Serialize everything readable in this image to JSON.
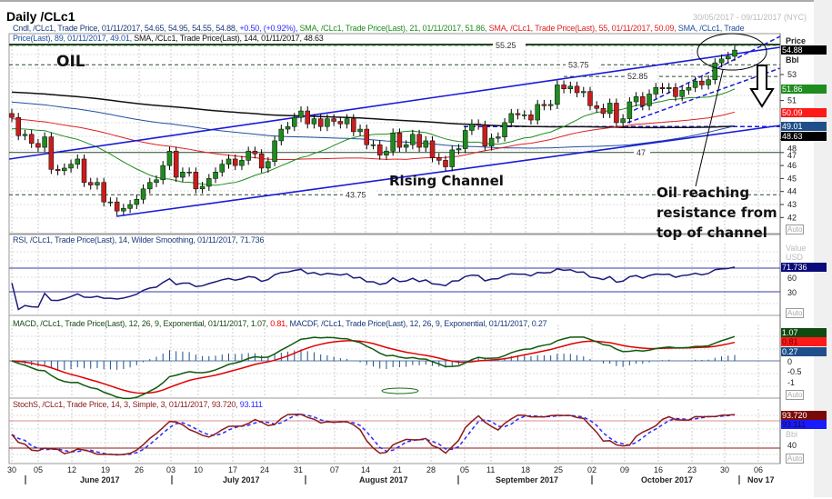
{
  "window": {
    "title": "Daily /CLc1",
    "date_range": "30/05/2017 - 09/11/2017 (NYC)"
  },
  "legends": {
    "main_line1": [
      {
        "text": "Cndl, /CLc1, Trade Price, 01/11/2017, 54.65, 54.95, 54.55, 54.88,",
        "color": "#1a3a7a"
      },
      {
        "text": " +0.50, (+0.92%),",
        "color": "#2a2aff"
      },
      {
        "text": " SMA, /CLc1, Trade Price(Last),  21, 01/11/2017, 51.86,",
        "color": "#1e8c1e"
      },
      {
        "text": " SMA, /CLc1, Trade Price(Last),  55, 01/11/2017, 50.09,",
        "color": "#e02020"
      },
      {
        "text": " SMA, /CLc1, Trade Price(Last),  89,",
        "color": "#1f4fa0"
      }
    ],
    "main_line2": [
      {
        "text": "01/11/2017, 49.01,",
        "color": "#1f4fa0"
      },
      {
        "text": " SMA, /CLc1, Trade Price(Last),  144, 01/11/2017, 48.63",
        "color": "#111"
      }
    ],
    "rsi": "RSI, /CLc1, Trade Price(Last),  14, Wilder Smoothing, 01/11/2017, 71.736",
    "macd": [
      {
        "text": "MACD, /CLc1, Trade Price(Last),  12, 26, 9, Exponential, 01/11/2017, 1.07,",
        "color": "#1a4a1a"
      },
      {
        "text": " 0.81,",
        "color": "#e00"
      },
      {
        "text": " MACDF, /CLc1, Trade Price(Last),  12, 26, 9, Exponential, 01/11/2017, 0.27",
        "color": "#1a3a7a"
      }
    ],
    "stoch": [
      {
        "text": "StochS, /CLc1, Trade Price,  14, 3, Simple, 3, 01/11/2017, 93.720,",
        "color": "#8b1a1a"
      },
      {
        "text": " 93.111",
        "color": "#2a2aff"
      }
    ]
  },
  "annotations": {
    "oil": "OIL",
    "channel": "Rising Channel",
    "note": [
      "Oil reaching",
      "resistance from",
      "top of channel"
    ]
  },
  "levels": [
    {
      "label": "55.25",
      "value": 55.25
    },
    {
      "label": "53.75",
      "value": 53.75
    },
    {
      "label": "52.85",
      "value": 52.85
    },
    {
      "label": "47",
      "value": 47
    },
    {
      "label": "43.75",
      "value": 43.75
    }
  ],
  "axis": {
    "price_header": "Price",
    "price_unit": "Bbl",
    "price_ticks": [
      "53",
      "51",
      "48",
      "47",
      "46",
      "45",
      "44",
      "43",
      "42"
    ],
    "tags": [
      {
        "text": "54.88",
        "bg": "#000",
        "value": 54.88
      },
      {
        "text": "51.86",
        "bg": "#1e8c1e",
        "value": 51.86
      },
      {
        "text": "50.09",
        "bg": "#ff1a1a",
        "value": 50.09
      },
      {
        "text": "49.01",
        "bg": "#1f4f8a",
        "value": 49.01
      },
      {
        "text": "48.63",
        "bg": "#000",
        "value": 48.63
      }
    ],
    "rsi_header": "Value",
    "rsi_unit": "USD",
    "rsi_ticks": [
      "60",
      "30"
    ],
    "rsi_tag": "71.736",
    "macd_ticks": [
      "0",
      "-0.5",
      "-1"
    ],
    "macd_tags": [
      "1.07",
      "0.81",
      "0.27"
    ],
    "stoch_tags": [
      "93.720",
      "93.111"
    ],
    "stoch_unit": "Bbl",
    "stoch_ticks": [
      "40"
    ],
    "auto": "Auto",
    "days": [
      "30",
      "05",
      "12",
      "19",
      "26",
      "03",
      "10",
      "17",
      "24",
      "31",
      "07",
      "14",
      "21",
      "28",
      "05",
      "11",
      "18",
      "25",
      "02",
      "09",
      "16",
      "23",
      "30",
      "06"
    ],
    "months": [
      "June 2017",
      "July 2017",
      "August 2017",
      "September 2017",
      "October 2017",
      "Nov 17"
    ]
  },
  "colors": {
    "up": "#1e8c1e",
    "down": "#c81e1e",
    "sma21": "#1e8c1e",
    "sma55": "#e02020",
    "sma89": "#1f4fa0",
    "sma144": "#111111",
    "channel": "#1a1ad8",
    "rsi": "#1a1a7a",
    "macd": "#0f5a0f",
    "signal": "#e00000",
    "stoch_k": "#8b1a1a",
    "stoch_d": "#2a2aff"
  },
  "chart_data": {
    "type": "candlestick",
    "symbol": "/CLc1",
    "period": "Daily",
    "last": {
      "open": 54.65,
      "high": 54.95,
      "low": 54.55,
      "close": 54.88,
      "change": 0.5,
      "change_pct": 0.92
    },
    "first_date": "30/05/2017",
    "last_date": "01/11/2017",
    "closes": [
      49.7,
      48.3,
      48.4,
      47.7,
      47.4,
      48.2,
      45.7,
      45.6,
      45.8,
      46.1,
      46.5,
      44.7,
      44.5,
      44.7,
      43.2,
      43.2,
      42.5,
      42.7,
      43.0,
      43.4,
      44.2,
      44.7,
      44.9,
      46.0,
      47.1,
      45.1,
      45.5,
      45.5,
      44.2,
      44.4,
      45.0,
      45.5,
      46.1,
      46.5,
      46.0,
      46.4,
      47.1,
      46.9,
      45.8,
      46.3,
      47.9,
      48.8,
      49.0,
      49.7,
      50.2,
      49.2,
      49.6,
      49.0,
      49.6,
      49.4,
      49.2,
      49.6,
      48.6,
      48.8,
      47.6,
      47.6,
      46.8,
      47.1,
      48.5,
      47.4,
      47.6,
      48.4,
      47.4,
      47.9,
      46.6,
      46.4,
      45.9,
      47.2,
      47.3,
      48.7,
      49.2,
      49.1,
      47.5,
      48.1,
      48.2,
      49.3,
      50.0,
      49.9,
      49.9,
      49.5,
      50.7,
      50.6,
      50.7,
      52.2,
      51.9,
      52.1,
      51.6,
      51.7,
      50.6,
      50.4,
      50.0,
      50.8,
      49.3,
      49.6,
      50.9,
      51.3,
      50.6,
      51.5,
      52.0,
      51.9,
      52.0,
      51.3,
      51.8,
      52.0,
      52.5,
      52.2,
      52.6,
      53.9,
      54.2,
      54.4,
      54.88
    ],
    "sma": {
      "21": 51.86,
      "55": 50.09,
      "89": 49.01,
      "144": 48.63
    },
    "rsi": {
      "period": 14,
      "last": 71.736,
      "levels": [
        30,
        70
      ]
    },
    "macd": {
      "fast": 12,
      "slow": 26,
      "signal": 9,
      "macd": 1.07,
      "signal_value": 0.81,
      "hist": 0.27
    },
    "stoch": {
      "k": 93.72,
      "d": 93.111,
      "levels": [
        20,
        80
      ]
    }
  }
}
